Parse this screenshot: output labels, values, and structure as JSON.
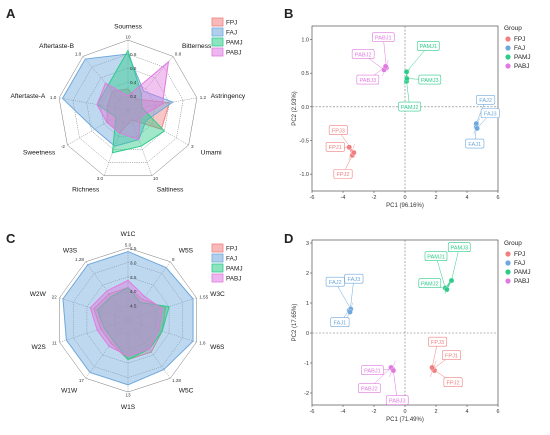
{
  "panels": {
    "A": "A",
    "B": "B",
    "C": "C",
    "D": "D"
  },
  "colors": {
    "FPJ": "#f08080",
    "FAJ": "#6fa8dc",
    "PAMJ": "#2ecc8a",
    "PABJ": "#e07ae0"
  },
  "chart_data": [
    {
      "id": "A",
      "type": "radar",
      "axes": [
        "Sourness",
        "Bitterness",
        "Astringency",
        "Umami",
        "Saltiness",
        "Richness",
        "Sweetness",
        "Aftertaste-A",
        "Aftertaste-B"
      ],
      "axis_max_labels": [
        "10",
        "0.8",
        "1.2",
        "3",
        "10",
        "3.0",
        "-2",
        "1.0",
        "1.0"
      ],
      "ring_ticks": [
        "0.2",
        "0.4",
        "0.6",
        "0.8"
      ],
      "series": [
        {
          "name": "FPJ",
          "values": [
            0.3,
            0.2,
            0.6,
            0.55,
            0.15,
            0.35,
            0.35,
            0.3,
            0.35
          ]
        },
        {
          "name": "FAJ",
          "values": [
            0.8,
            0.35,
            0.65,
            0.3,
            0.45,
            0.55,
            0.55,
            0.95,
            0.95
          ]
        },
        {
          "name": "PAMJ",
          "values": [
            0.85,
            0.3,
            0.2,
            0.6,
            0.55,
            0.65,
            0.2,
            0.45,
            0.45
          ]
        },
        {
          "name": "PABJ",
          "values": [
            0.2,
            0.9,
            0.5,
            0.2,
            0.45,
            0.35,
            0.35,
            0.45,
            0.5
          ]
        }
      ]
    },
    {
      "id": "B",
      "type": "scatter",
      "xlabel": "PC1 (96.16%)",
      "ylabel": "PC2 (2.93%)",
      "xlim": [
        -6,
        6
      ],
      "ylim": [
        -1.25,
        1.2
      ],
      "xticks": [
        "-6",
        "-4",
        "-2",
        "0",
        "2",
        "4",
        "6"
      ],
      "yticks": [
        "-1.0",
        "-0.5",
        "0.0",
        "0.5",
        "1.0"
      ],
      "legend_title": "Group",
      "groups": [
        "FPJ",
        "FAJ",
        "PAMJ",
        "PABJ"
      ],
      "points": [
        {
          "label": "FPJ1",
          "group": "FPJ",
          "x": -3.6,
          "y": -0.6
        },
        {
          "label": "FPJ2",
          "group": "FPJ",
          "x": -3.4,
          "y": -0.72
        },
        {
          "label": "FPJ3",
          "group": "FPJ",
          "x": -3.3,
          "y": -0.68
        },
        {
          "label": "FAJ1",
          "group": "FAJ",
          "x": 4.6,
          "y": -0.3
        },
        {
          "label": "FAJ2",
          "group": "FAJ",
          "x": 4.6,
          "y": -0.25
        },
        {
          "label": "FAJ3",
          "group": "FAJ",
          "x": 4.65,
          "y": -0.32
        },
        {
          "label": "PAMJ1",
          "group": "PAMJ",
          "x": 0.1,
          "y": 0.52
        },
        {
          "label": "PAMJ2",
          "group": "PAMJ",
          "x": 0.1,
          "y": 0.38
        },
        {
          "label": "PAMJ3",
          "group": "PAMJ",
          "x": 0.12,
          "y": 0.42
        },
        {
          "label": "PABJ1",
          "group": "PABJ",
          "x": -1.2,
          "y": 0.58
        },
        {
          "label": "PABJ2",
          "group": "PABJ",
          "x": -1.35,
          "y": 0.55
        },
        {
          "label": "PABJ3",
          "group": "PABJ",
          "x": -1.25,
          "y": 0.6
        }
      ],
      "label_positions": [
        {
          "label": "FPJ3",
          "x": -4.3,
          "y": -0.35
        },
        {
          "label": "FPJ1",
          "x": -4.5,
          "y": -0.6
        },
        {
          "label": "FPJ2",
          "x": -4.0,
          "y": -1.0
        },
        {
          "label": "FAJ2",
          "x": 5.2,
          "y": 0.1
        },
        {
          "label": "FAJ3",
          "x": 5.5,
          "y": -0.1
        },
        {
          "label": "FAJ1",
          "x": 4.5,
          "y": -0.55
        },
        {
          "label": "PAMJ1",
          "x": 1.5,
          "y": 0.9
        },
        {
          "label": "PAMJ3",
          "x": 1.6,
          "y": 0.4
        },
        {
          "label": "PAMJ2",
          "x": 0.3,
          "y": 0.0
        },
        {
          "label": "PABJ1",
          "x": -1.4,
          "y": 1.03
        },
        {
          "label": "PABJ2",
          "x": -2.7,
          "y": 0.78
        },
        {
          "label": "PABJ3",
          "x": -2.4,
          "y": 0.4
        }
      ]
    },
    {
      "id": "C",
      "type": "radar",
      "axes": [
        "W1C",
        "W5S",
        "W3C",
        "W6S",
        "W5C",
        "W1S",
        "W1W",
        "W2S",
        "W2W",
        "W3S"
      ],
      "axis_max_labels": [
        "5.0",
        "8",
        "1.55",
        "1.6",
        "1.28",
        "13",
        "17",
        "11",
        "22",
        "1.28"
      ],
      "ring_ticks": [
        "4.5",
        "4.0",
        "3.5",
        "3.0",
        "2.5"
      ],
      "series": [
        {
          "name": "FPJ",
          "values": [
            0.45,
            0.35,
            0.55,
            0.5,
            0.55,
            0.55,
            0.4,
            0.4,
            0.5,
            0.45
          ]
        },
        {
          "name": "FAJ",
          "values": [
            0.95,
            0.9,
            0.95,
            0.95,
            0.85,
            0.9,
            0.9,
            0.9,
            0.95,
            0.95
          ]
        },
        {
          "name": "PAMJ",
          "values": [
            0.45,
            0.3,
            0.6,
            0.5,
            0.5,
            0.55,
            0.35,
            0.35,
            0.45,
            0.4
          ]
        },
        {
          "name": "PABJ",
          "values": [
            0.55,
            0.4,
            0.5,
            0.45,
            0.5,
            0.5,
            0.45,
            0.45,
            0.55,
            0.5
          ]
        }
      ]
    },
    {
      "id": "D",
      "type": "scatter",
      "xlabel": "PC1 (71.49%)",
      "ylabel": "PC2 (17.65%)",
      "xlim": [
        -6,
        6
      ],
      "ylim": [
        -2.4,
        3.1
      ],
      "xticks": [
        "-6",
        "-4",
        "-2",
        "0",
        "2",
        "4",
        "6"
      ],
      "yticks": [
        "-2",
        "-1",
        "0",
        "1",
        "2",
        "3"
      ],
      "legend_title": "Group",
      "groups": [
        "FPJ",
        "FAJ",
        "PAMJ",
        "PABJ"
      ],
      "points": [
        {
          "label": "FPJ1",
          "group": "FPJ",
          "x": 1.8,
          "y": -1.2
        },
        {
          "label": "FPJ2",
          "group": "FPJ",
          "x": 1.9,
          "y": -1.25
        },
        {
          "label": "FPJ3",
          "group": "FPJ",
          "x": 1.75,
          "y": -1.15
        },
        {
          "label": "FAJ1",
          "group": "FAJ",
          "x": -3.6,
          "y": 0.75
        },
        {
          "label": "FAJ2",
          "group": "FAJ",
          "x": -3.5,
          "y": 0.8
        },
        {
          "label": "FAJ3",
          "group": "FAJ",
          "x": -3.55,
          "y": 0.7
        },
        {
          "label": "PAMJ1",
          "group": "PAMJ",
          "x": 2.6,
          "y": 1.5
        },
        {
          "label": "PAMJ2",
          "group": "PAMJ",
          "x": 2.7,
          "y": 1.45
        },
        {
          "label": "PAMJ3",
          "group": "PAMJ",
          "x": 3.0,
          "y": 1.75
        },
        {
          "label": "PABJ1",
          "group": "PABJ",
          "x": -0.8,
          "y": -1.2
        },
        {
          "label": "PABJ2",
          "group": "PABJ",
          "x": -0.9,
          "y": -1.15
        },
        {
          "label": "PABJ3",
          "group": "PABJ",
          "x": -0.75,
          "y": -1.25
        }
      ],
      "label_positions": [
        {
          "label": "FPJ3",
          "x": 2.1,
          "y": -0.3
        },
        {
          "label": "FPJ1",
          "x": 3.0,
          "y": -0.75
        },
        {
          "label": "FPJ2",
          "x": 3.1,
          "y": -1.65
        },
        {
          "label": "FAJ2",
          "x": -4.5,
          "y": 1.7
        },
        {
          "label": "FAJ3",
          "x": -3.3,
          "y": 1.8
        },
        {
          "label": "FAJ1",
          "x": -4.2,
          "y": 0.35
        },
        {
          "label": "PAMJ1",
          "x": 2.0,
          "y": 2.55
        },
        {
          "label": "PAMJ3",
          "x": 3.5,
          "y": 2.85
        },
        {
          "label": "PAMJ2",
          "x": 1.6,
          "y": 1.65
        },
        {
          "label": "PABJ1",
          "x": -2.1,
          "y": -1.25
        },
        {
          "label": "PABJ2",
          "x": -2.3,
          "y": -1.85
        },
        {
          "label": "PABJ3",
          "x": -0.5,
          "y": -2.25
        }
      ]
    }
  ]
}
